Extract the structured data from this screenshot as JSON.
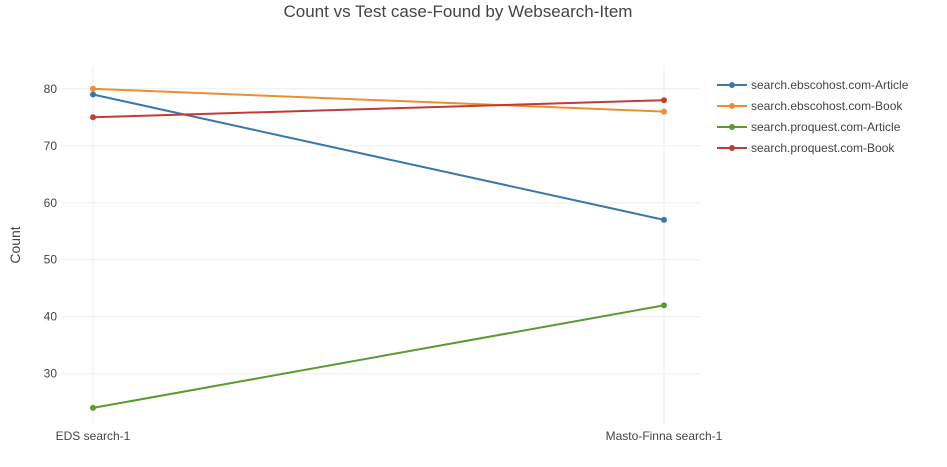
{
  "chart_data": {
    "type": "line",
    "title": "Count vs Test case-Found by Websearch-Item",
    "xlabel": "",
    "ylabel": "Count",
    "categories": [
      "EDS search-1",
      "Masto-Finna search-1"
    ],
    "ylim": [
      21,
      84
    ],
    "yticks": [
      30,
      40,
      50,
      60,
      70,
      80
    ],
    "grid": true,
    "legend_position": "right",
    "series": [
      {
        "name": "search.ebscohost.com-Article",
        "color": "#3a78aa",
        "values": [
          79,
          57
        ]
      },
      {
        "name": "search.ebscohost.com-Book",
        "color": "#ef8d31",
        "values": [
          80,
          76
        ]
      },
      {
        "name": "search.proquest.com-Article",
        "color": "#5a9a31",
        "values": [
          24,
          42
        ]
      },
      {
        "name": "search.proquest.com-Book",
        "color": "#c23b34",
        "values": [
          75,
          78
        ]
      }
    ]
  }
}
